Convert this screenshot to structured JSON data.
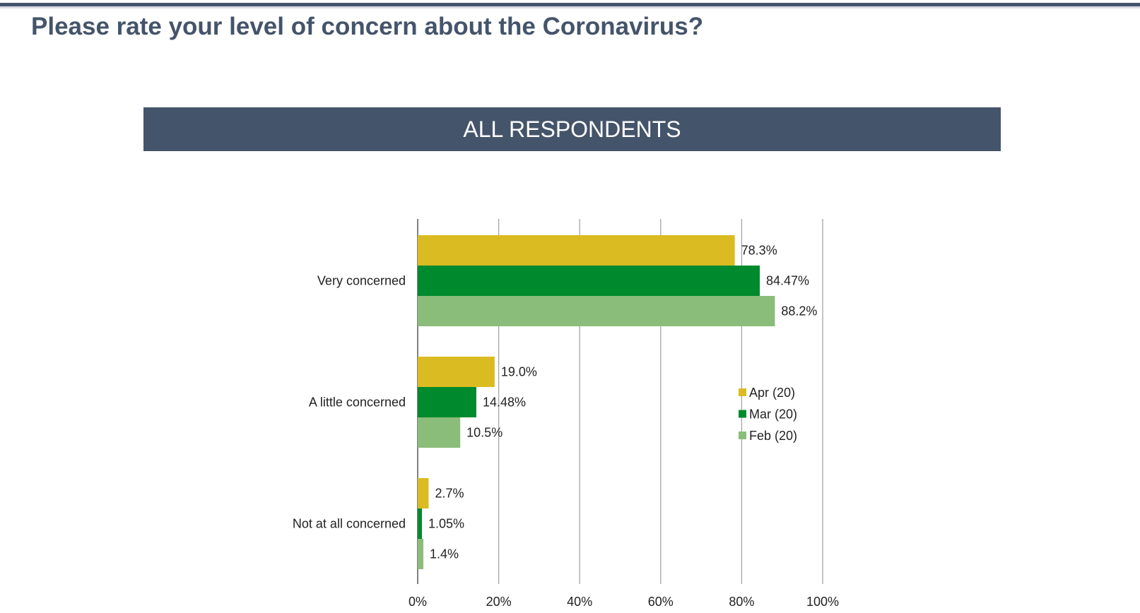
{
  "slide": {
    "title": "Please rate your level of concern about the Coronavirus?",
    "banner": "ALL RESPONDENTS"
  },
  "colors": {
    "rule": "#44546a",
    "banner_bg": "#44546a",
    "grid": "#a6a6a6",
    "axis": "#808080"
  },
  "chart_data": {
    "type": "bar",
    "orientation": "horizontal",
    "categories": [
      "Very concerned",
      "A little concerned",
      "Not at all concerned"
    ],
    "series": [
      {
        "name": "Apr (20)",
        "color": "#dbbb22",
        "values": [
          78.3,
          19.0,
          2.7
        ],
        "labels": [
          "78.3%",
          "19.0%",
          "2.7%"
        ]
      },
      {
        "name": "Mar (20)",
        "color": "#008a2e",
        "values": [
          84.47,
          14.48,
          1.05
        ],
        "labels": [
          "84.47%",
          "14.48%",
          "1.05%"
        ]
      },
      {
        "name": "Feb (20)",
        "color": "#8abd79",
        "values": [
          88.2,
          10.5,
          1.4
        ],
        "labels": [
          "88.2%",
          "10.5%",
          "1.4%"
        ]
      }
    ],
    "xlim": [
      0,
      100
    ],
    "xticks": [
      0,
      20,
      40,
      60,
      80,
      100
    ],
    "xtick_labels": [
      "0%",
      "20%",
      "40%",
      "60%",
      "80%",
      "100%"
    ],
    "grid": true,
    "legend_position": "right"
  }
}
